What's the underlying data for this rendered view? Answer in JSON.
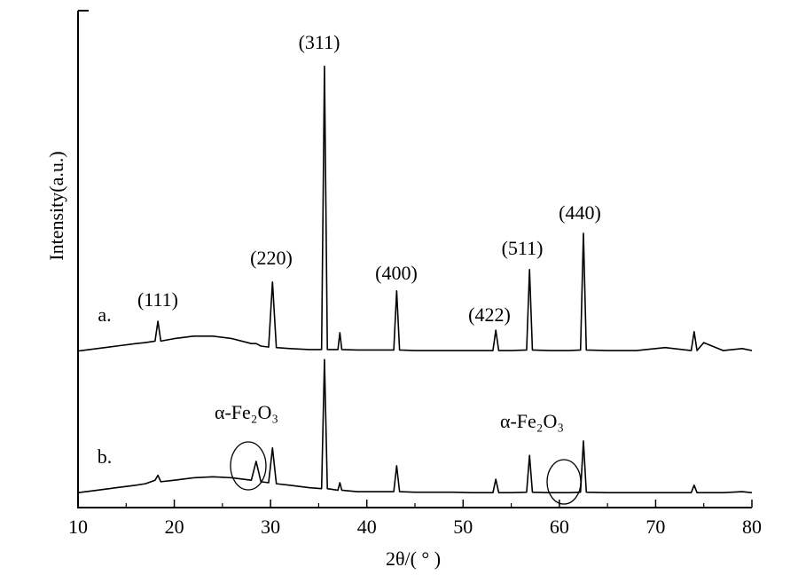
{
  "chart_data": {
    "type": "line",
    "x_label": "2θ/( ° )",
    "y_label": "Intensity(a.u.)",
    "xlim": [
      10,
      80
    ],
    "xticks": [
      10,
      20,
      30,
      40,
      50,
      60,
      70,
      80
    ],
    "ylim": [
      0,
      100
    ],
    "x": [
      10,
      12,
      14,
      16,
      17,
      18,
      18.3,
      18.6,
      20,
      22,
      24,
      26,
      28,
      28.5,
      29,
      29.8,
      30.2,
      30.6,
      32,
      34,
      35.3,
      35.6,
      35.9,
      37,
      37.2,
      37.4,
      39,
      41,
      42.8,
      43.1,
      43.4,
      45,
      47,
      49,
      51,
      53.1,
      53.4,
      53.7,
      55,
      56.6,
      56.9,
      57.2,
      59,
      61,
      62.2,
      62.5,
      62.8,
      65,
      68,
      71,
      73.7,
      74,
      74.3,
      75,
      77,
      79,
      80
    ],
    "series": [
      {
        "color": "#000000",
        "values": [
          31.5,
          32,
          32.5,
          33,
          33.2,
          33.5,
          37.5,
          33.5,
          34,
          34.5,
          34.5,
          34,
          33,
          33,
          32.5,
          32.3,
          45.4,
          32.2,
          32,
          31.8,
          31.8,
          88.8,
          31.8,
          31.8,
          35.2,
          31.8,
          31.7,
          31.7,
          31.7,
          43.6,
          31.7,
          31.6,
          31.6,
          31.6,
          31.6,
          31.6,
          35.7,
          31.6,
          31.6,
          31.7,
          47.9,
          31.7,
          31.6,
          31.6,
          31.7,
          55.2,
          31.7,
          31.6,
          31.6,
          32.2,
          31.6,
          35.4,
          31.6,
          33.2,
          31.6,
          32,
          31.6
        ]
      },
      {
        "color": "#000000",
        "values": [
          3,
          3.5,
          4,
          4.5,
          4.8,
          5.5,
          6.5,
          5.2,
          5.5,
          6,
          6.2,
          6,
          5.5,
          9.3,
          5.2,
          5,
          12,
          4.8,
          4.5,
          4,
          3.8,
          29.8,
          3.8,
          3.5,
          5,
          3.5,
          3.2,
          3.2,
          3.2,
          8.4,
          3.2,
          3.1,
          3.1,
          3.1,
          3,
          3,
          5.7,
          3,
          3,
          3.1,
          10.5,
          3.1,
          3,
          3,
          3.1,
          13.4,
          3.1,
          3,
          3,
          3,
          3,
          4.5,
          3,
          3,
          3,
          3.2,
          3
        ]
      }
    ],
    "annotations": [
      "(311)",
      "(220)",
      "(111)",
      "(400)",
      "(422)",
      "(511)",
      "(440)",
      "a.",
      "b.",
      "α-Fe₂O₃",
      "α-Fe₂O₃"
    ]
  }
}
